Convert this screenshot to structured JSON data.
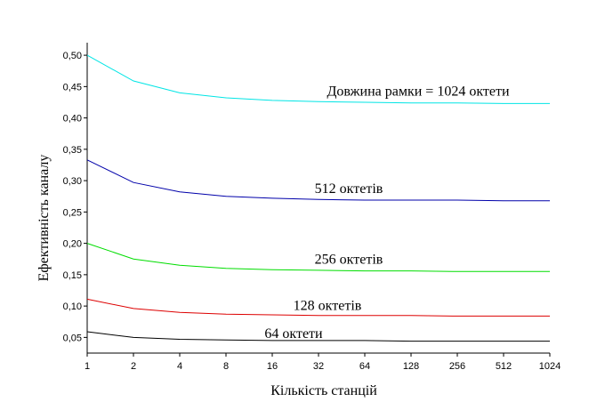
{
  "chart_data": {
    "type": "line",
    "xlabel": "Кількість станцій",
    "ylabel": "Ефективність каналу",
    "x_scale": "log2",
    "x": [
      1,
      2,
      4,
      8,
      16,
      32,
      64,
      128,
      256,
      512,
      1024
    ],
    "x_tick_labels": [
      "1",
      "2",
      "4",
      "8",
      "16",
      "32",
      "64",
      "128",
      "256",
      "512",
      "1024"
    ],
    "y_ticks": [
      "0,05",
      "0,10",
      "0,15",
      "0,20",
      "0,25",
      "0,30",
      "0,35",
      "0,40",
      "0,45",
      "0,50"
    ],
    "y_tick_values": [
      0.05,
      0.1,
      0.15,
      0.2,
      0.25,
      0.3,
      0.35,
      0.4,
      0.45,
      0.5
    ],
    "ylim": [
      0.025,
      0.52
    ],
    "xlim": [
      1,
      1024
    ],
    "grid": false,
    "series": [
      {
        "name": "Довжина рамки = 1024 октети",
        "color": "#00e5e5",
        "values": [
          0.5,
          0.459,
          0.44,
          0.432,
          0.428,
          0.426,
          0.425,
          0.424,
          0.424,
          0.423,
          0.423
        ]
      },
      {
        "name": "512 октетів",
        "color": "#0000aa",
        "values": [
          0.333,
          0.297,
          0.282,
          0.275,
          0.272,
          0.27,
          0.269,
          0.269,
          0.269,
          0.268,
          0.268
        ]
      },
      {
        "name": "256 октетів",
        "color": "#00dd00",
        "values": [
          0.2,
          0.175,
          0.165,
          0.16,
          0.158,
          0.157,
          0.156,
          0.156,
          0.155,
          0.155,
          0.155
        ]
      },
      {
        "name": "128 октетів",
        "color": "#dd0000",
        "values": [
          0.111,
          0.096,
          0.09,
          0.087,
          0.086,
          0.085,
          0.085,
          0.085,
          0.084,
          0.084,
          0.084
        ]
      },
      {
        "name": "64 октети",
        "color": "#000000",
        "values": [
          0.059,
          0.05,
          0.047,
          0.046,
          0.045,
          0.045,
          0.045,
          0.044,
          0.044,
          0.044,
          0.044
        ]
      }
    ]
  }
}
